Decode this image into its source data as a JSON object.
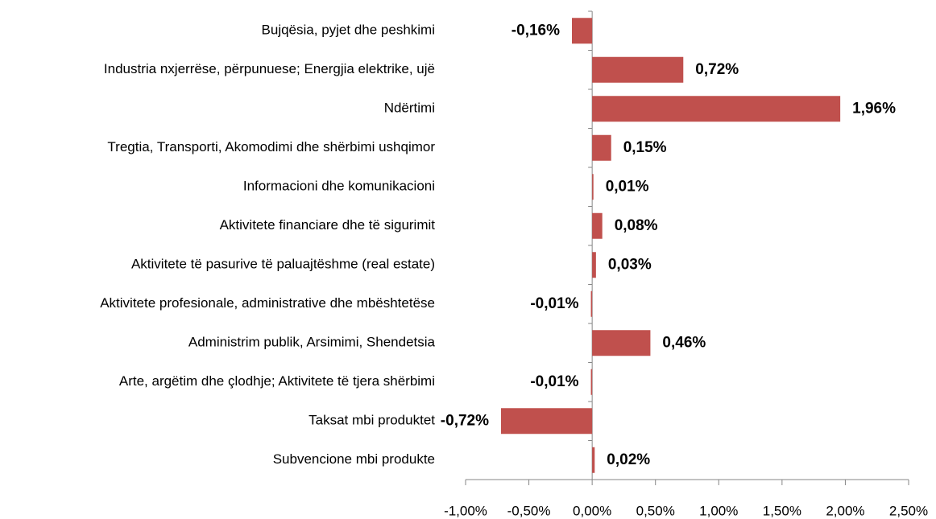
{
  "chart_data": {
    "type": "barh",
    "categories": [
      "Bujqësia, pyjet dhe peshkimi",
      "Industria nxjerrëse, përpunuese; Energjia elektrike, ujë",
      "Ndërtimi",
      "Tregtia, Transporti, Akomodimi dhe shërbimi ushqimor",
      "Informacioni dhe komunikacioni",
      "Aktivitete financiare dhe të sigurimit",
      "Aktivitete të pasurive të paluajtëshme (real estate)",
      "Aktivitete profesionale, administrative dhe mbështetëse",
      "Administrim publik, Arsimimi, Shendetsia",
      "Arte, argëtim dhe çlodhje; Aktivitete të tjera shërbimi",
      "Taksat mbi produktet",
      "Subvencione mbi produkte"
    ],
    "values": [
      -0.16,
      0.72,
      1.96,
      0.15,
      0.01,
      0.08,
      0.03,
      -0.01,
      0.46,
      -0.01,
      -0.72,
      0.02
    ],
    "value_labels": [
      "-0,16%",
      "0,72%",
      "1,96%",
      "0,15%",
      "0,01%",
      "0,08%",
      "0,03%",
      "-0,01%",
      "0,46%",
      "-0,01%",
      "-0,72%",
      "0,02%"
    ],
    "color": "#c0504d",
    "xlim": [
      -1,
      2.5
    ],
    "xticks": [
      {
        "value": -1,
        "label": "-1,00%"
      },
      {
        "value": -0.5,
        "label": "-0,50%"
      },
      {
        "value": 0,
        "label": "0,00%"
      },
      {
        "value": 0.5,
        "label": "0,50%"
      },
      {
        "value": 1,
        "label": "1,00%"
      },
      {
        "value": 1.5,
        "label": "1,50%"
      },
      {
        "value": 2,
        "label": "2,00%"
      },
      {
        "value": 2.5,
        "label": "2,50%"
      }
    ]
  }
}
